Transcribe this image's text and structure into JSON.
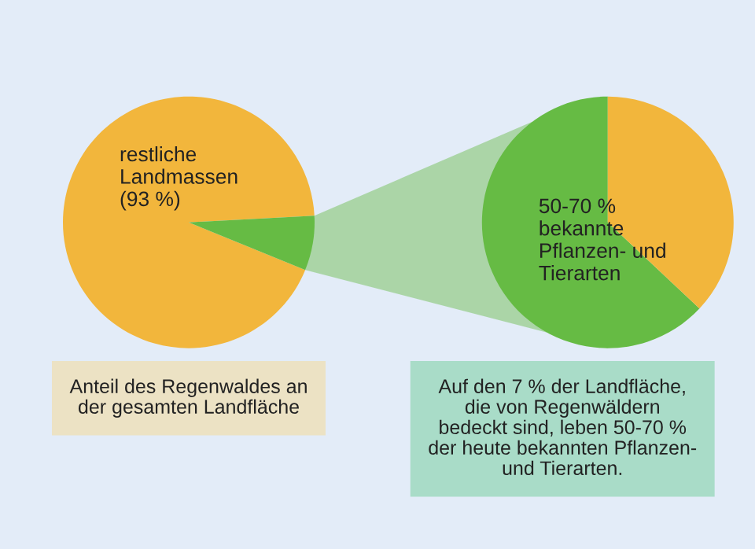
{
  "chart_data": [
    {
      "type": "pie",
      "categories": [
        "restliche\nLandmassen\n(93 %)",
        null
      ],
      "values": [
        93,
        7
      ],
      "colors": [
        "#f2b63c",
        "#66bb44"
      ],
      "annotations": [
        "Anteil des Regenwaldes an\nder gesamten Landfläche"
      ]
    },
    {
      "type": "pie",
      "categories": [
        "50-70 %\nbekannte\nPflanzen- und\nTierarten",
        null
      ],
      "values": [
        63,
        37
      ],
      "colors": [
        "#66bb44",
        "#f2b63c"
      ],
      "annotations": [
        "Auf den 7 % der Landfläche,\ndie von Regenwäldern\nbedeckt sind, leben 50-70 %\nder heute bekannten Pflanzen-\nund Tierarten."
      ]
    }
  ]
}
